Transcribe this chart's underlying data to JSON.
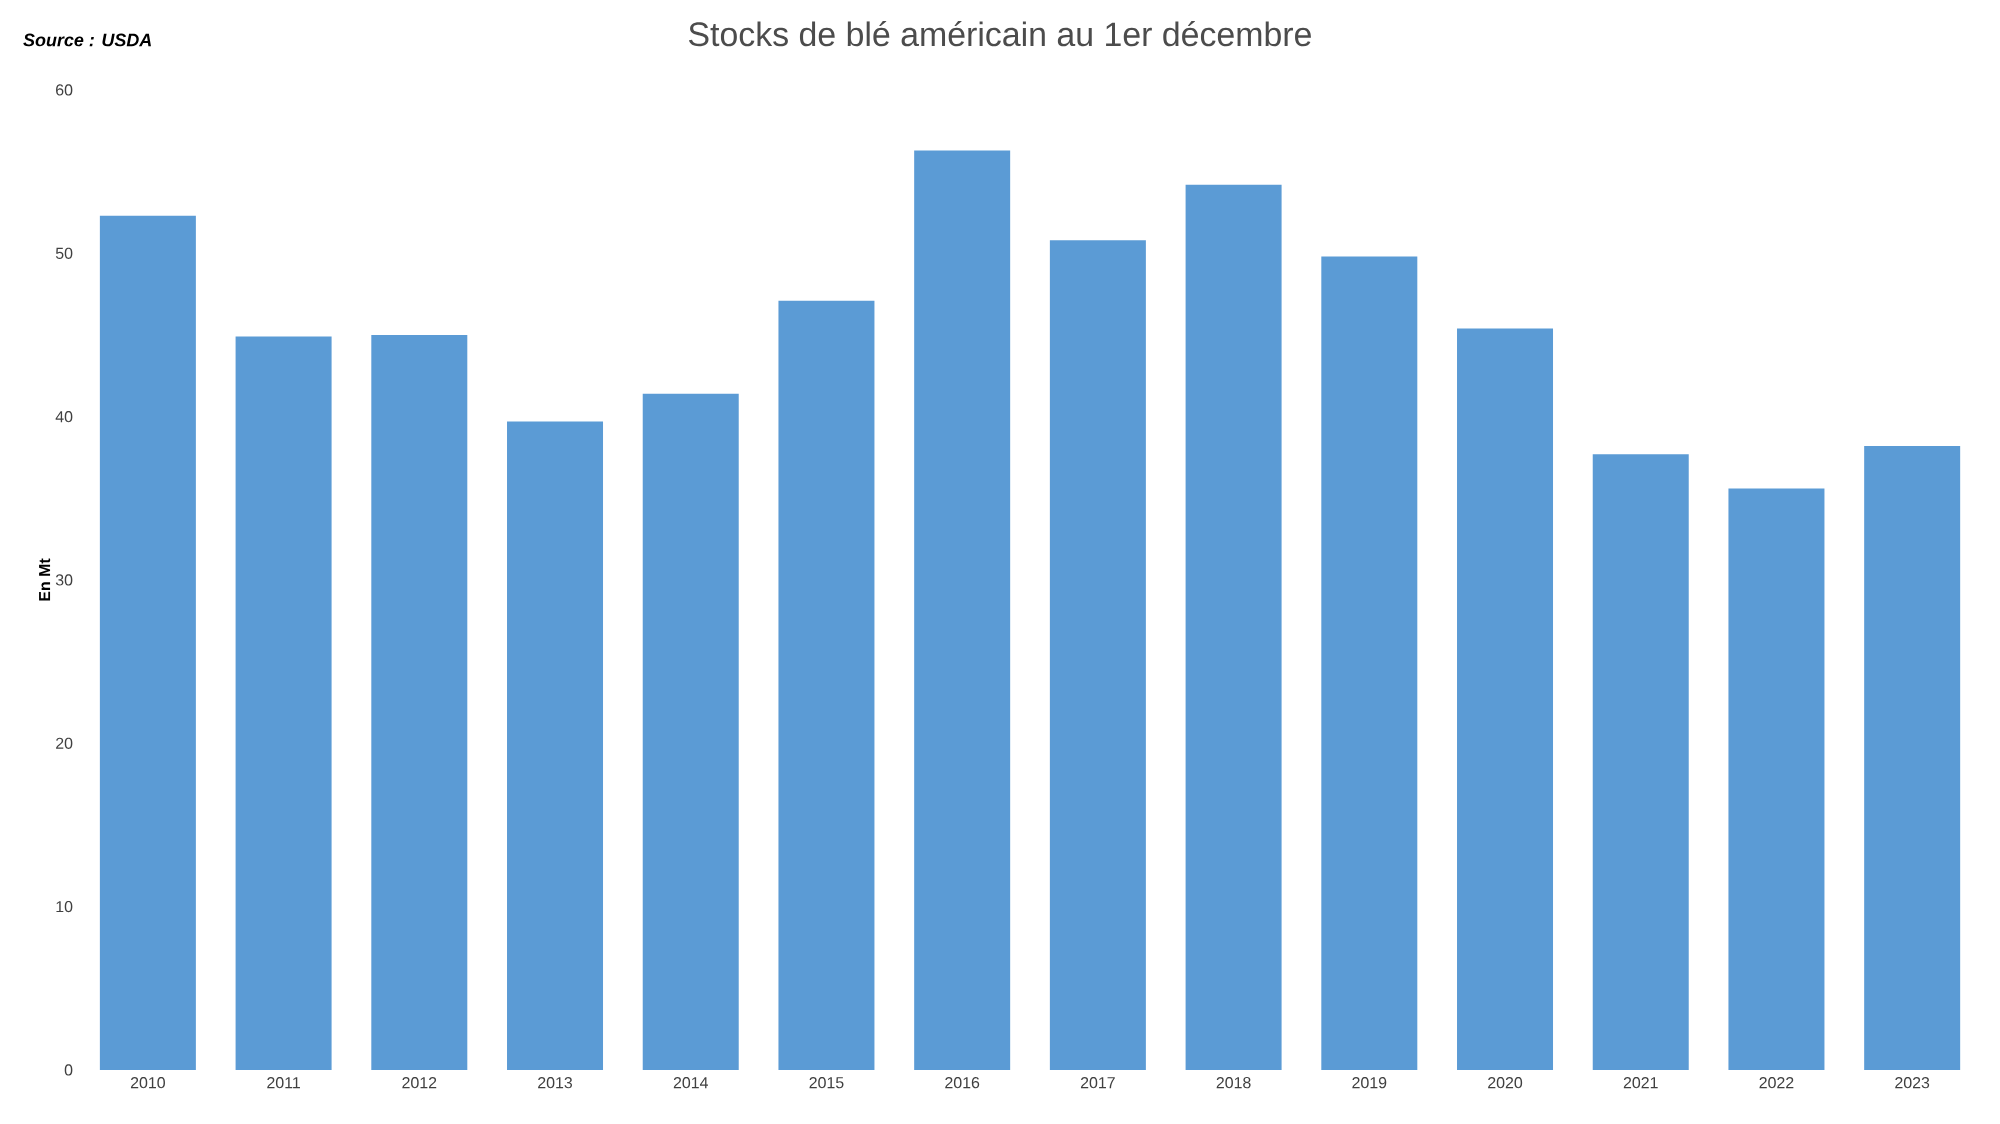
{
  "chart_data": {
    "type": "bar",
    "title": "Stocks de blé américain au 1er décembre",
    "ylabel": "En Mt",
    "annotations": [
      "Source : USDA"
    ],
    "categories": [
      "2010",
      "2011",
      "2012",
      "2013",
      "2014",
      "2015",
      "2016",
      "2017",
      "2018",
      "2019",
      "2020",
      "2021",
      "2022",
      "2023"
    ],
    "values": [
      52.3,
      44.9,
      45.0,
      39.7,
      41.4,
      47.1,
      56.3,
      50.8,
      54.2,
      49.8,
      45.4,
      37.7,
      35.6,
      38.2
    ],
    "color": "#5b9bd5",
    "ylim": [
      0,
      60
    ],
    "yticks": [
      0,
      10,
      20,
      30,
      40,
      50,
      60
    ],
    "grid": false
  }
}
